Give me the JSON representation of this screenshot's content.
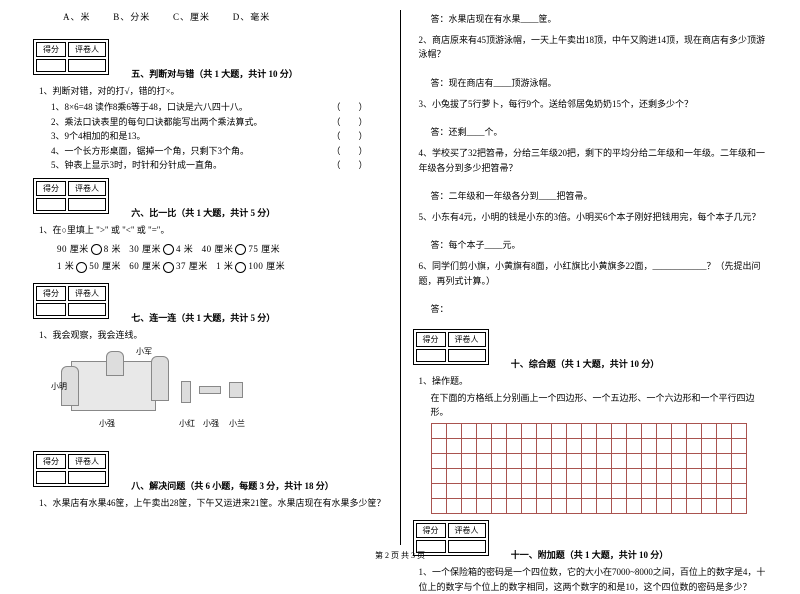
{
  "optionsA": "A、米",
  "optionsB": "B、分米",
  "optionsC": "C、厘米",
  "optionsD": "D、毫米",
  "scoreHeader1": "得分",
  "scoreHeader2": "评卷人",
  "sec5": {
    "title": "五、判断对与错（共 1 大题，共计 10 分）"
  },
  "s5q1": "1、判断对错，对的打√，错的打×。",
  "s5q1a": "1、8×6=48 读作8乘6等于48，口诀是六八四十八。",
  "s5q1b": "2、乘法口诀表里的每句口诀都能写出两个乘法算式。",
  "s5q1c": "3、9个4相加的和是13。",
  "s5q1d": "4、一个长方形桌面，锯掉一个角，只剩下3个角。",
  "s5q1e": "5、钟表上显示3时，时针和分针成一直角。",
  "paren": "（　　）",
  "sec6": {
    "title": "六、比一比（共 1 大题，共计 5 分）"
  },
  "s6q1": "1、在○里填上 \">\" 或 \"<\" 或 \"=\"。",
  "cmp1a": "90 厘米",
  "cmp1b": "8 米",
  "cmp2a": "30 厘米",
  "cmp2b": "4 米",
  "cmp3a": "40 厘米",
  "cmp3b": "75 厘米",
  "cmp4a": "1 米",
  "cmp4b": "50 厘米",
  "cmp5a": "60 厘米",
  "cmp5b": "37 厘米",
  "cmp6a": "1 米",
  "cmp6b": "100 厘米",
  "sec7": {
    "title": "七、连一连（共 1 大题，共计 5 分）"
  },
  "s7q1": "1、我会观察，我会连线。",
  "fig_labels": {
    "xm": "小明",
    "xj": "小军",
    "xh": "小红",
    "xq": "小强",
    "xl": "小兰"
  },
  "sec8": {
    "title": "八、解决问题（共 6 小题，每题 3 分，共计 18 分）"
  },
  "s8q1": "1、水果店有水果46筐，上午卖出28筐，下午又运进来21筐。水果店现在有水果多少筐？",
  "s8a1": "答：水果店现在有水果____筐。",
  "s8q2": "2、商店原来有45顶游泳帽，一天上午卖出18顶，中午又购进14顶，现在商店有多少顶游泳帽？",
  "s8a2": "答：现在商店有____顶游泳帽。",
  "s8q3": "3、小兔拔了5行萝卜，每行9个。送给邻居兔奶奶15个，还剩多少个？",
  "s8a3": "答：还剩____个。",
  "s8q4": "4、学校买了32把笤帚，分给三年级20把，剩下的平均分给二年级和一年级。二年级和一年级各分到多少把笤帚？",
  "s8a4": "答：二年级和一年级各分到____把笤帚。",
  "s8q5": "5、小东有4元，小明的钱是小东的3倍。小明买6个本子刚好把钱用完，每个本子几元？",
  "s8a5": "答：每个本子____元。",
  "s8q6": "6、同学们剪小旗，小黄旗有8面，小红旗比小黄旗多22面，____________？（先提出问题，再列式计算。）",
  "s8a6": "答：",
  "sec10": {
    "title": "十、综合题（共 1 大题，共计 10 分）"
  },
  "s10q1": "1、操作题。",
  "s10q1a": "在下面的方格纸上分别画上一个四边形、一个五边形、一个六边形和一个平行四边形。",
  "sec11": {
    "title": "十一、附加题（共 1 大题，共计 10 分）"
  },
  "s11q1": "1、一个保险箱的密码是一个四位数，它的大小在7000~8000之间，百位上的数字是4，十位上的数字与个位上的数字相同，这两个数字的和是10，这个四位数的密码是多少？",
  "footer": "第 2 页 共 3 页",
  "grid": {
    "rows": 6,
    "cols": 21,
    "border_color": "#a9534f"
  }
}
